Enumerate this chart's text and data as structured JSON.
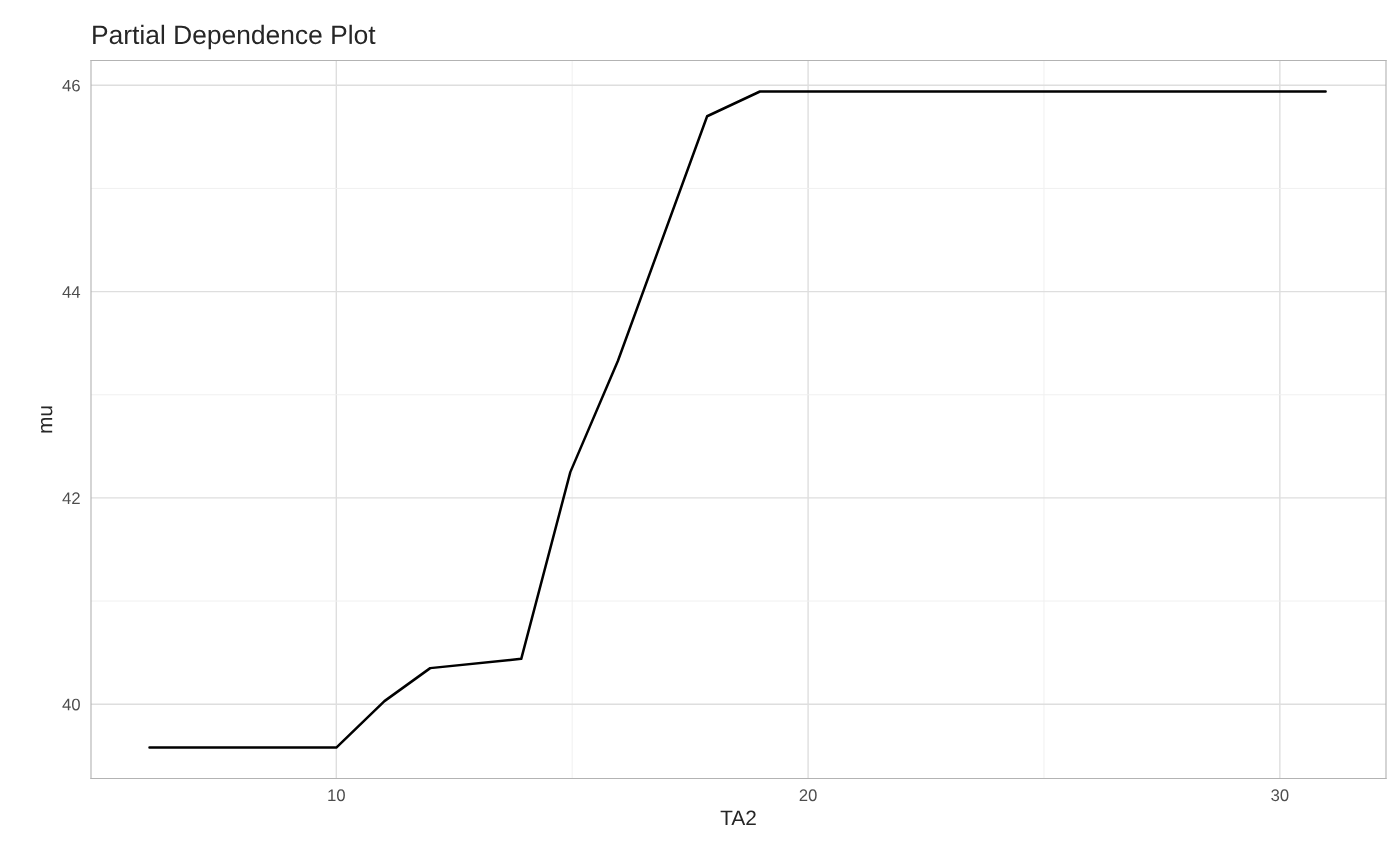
{
  "chart_data": {
    "type": "line",
    "title": "Partial Dependence Plot",
    "xlabel": "TA2",
    "ylabel": "mu",
    "x": [
      6.04,
      10,
      11.02,
      11.99,
      13.92,
      14.96,
      15.97,
      17.86,
      18.98,
      30.97
    ],
    "series": [
      {
        "color": "#000000",
        "values": [
          39.58,
          39.58,
          40.03,
          40.35,
          40.44,
          42.25,
          43.33,
          45.7,
          45.94,
          45.94
        ]
      }
    ],
    "xlim": [
      4.8,
      32.25
    ],
    "ylim": [
      39.28,
      46.24
    ],
    "xticks": [
      10,
      {
        "value": 15,
        "label": null
      },
      20,
      {
        "value": 25,
        "label": null
      },
      30
    ],
    "yticks": [
      40,
      {
        "value": 41,
        "label": null
      },
      42,
      {
        "value": 43,
        "label": null
      },
      44,
      {
        "value": 45,
        "label": null
      },
      46
    ],
    "grid": true,
    "legend": false,
    "marker": "none",
    "line_style": "solid"
  }
}
